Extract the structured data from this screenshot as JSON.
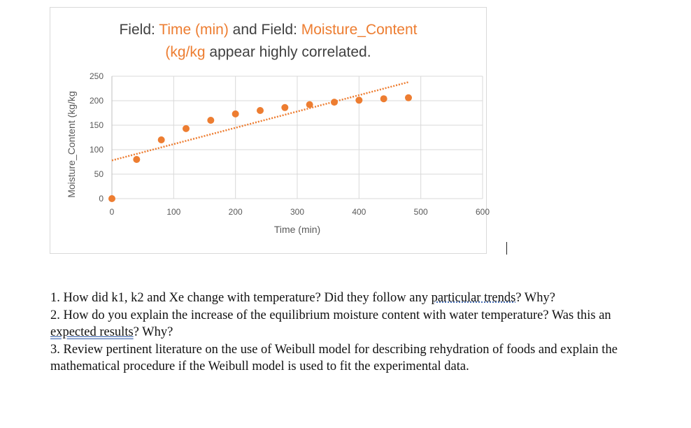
{
  "chart_data": {
    "type": "scatter",
    "title_parts": [
      {
        "text": "Field: ",
        "highlight": false
      },
      {
        "text": "Time (min)",
        "highlight": true
      },
      {
        "text": " and Field: ",
        "highlight": false
      },
      {
        "text": "Moisture_Content",
        "highlight": true
      },
      {
        "text": "(kg/kg",
        "highlight": true
      },
      {
        "text": " appear highly correlated.",
        "highlight": false
      }
    ],
    "xlabel": "Time (min)",
    "ylabel": "Moisture_Content (kg/kg",
    "xlim": [
      0,
      600
    ],
    "ylim": [
      0,
      250
    ],
    "xticks": [
      0,
      100,
      200,
      300,
      400,
      500,
      600
    ],
    "yticks": [
      0,
      50,
      100,
      150,
      200,
      250
    ],
    "grid": true,
    "series": [
      {
        "x": [
          0,
          40,
          80,
          120,
          160,
          200,
          240,
          280,
          320,
          360,
          400,
          440,
          480
        ],
        "y": [
          0,
          80,
          120,
          143,
          160,
          173,
          180,
          186,
          192,
          197,
          201,
          204,
          206
        ]
      }
    ],
    "trendline": {
      "style": "dotted",
      "x": [
        0,
        480
      ],
      "y": [
        78,
        238
      ]
    },
    "colors": {
      "marker": "#ED7D31",
      "grid": "#D9D9D9",
      "tick_text": "#595959",
      "axis": "#BFBFBF"
    }
  },
  "questions": [
    {
      "parts": [
        {
          "text": "1. How did k1, k2 and Xe change with temperature? Did they follow any ",
          "style": ""
        },
        {
          "text": "particular trends",
          "style": "dotted"
        },
        {
          "text": "? Why?",
          "style": ""
        }
      ]
    },
    {
      "parts": [
        {
          "text": "2. How do you explain the increase of the equilibrium moisture content with water temperature? Was this an ",
          "style": ""
        },
        {
          "text": "expected results",
          "style": "double"
        },
        {
          "text": "? Why?",
          "style": ""
        }
      ]
    },
    {
      "parts": [
        {
          "text": "3. Review pertinent literature on the use of Weibull model for describing rehydration of foods and explain the mathematical procedure if the Weibull model is used to fit the experimental data.",
          "style": ""
        }
      ]
    }
  ]
}
